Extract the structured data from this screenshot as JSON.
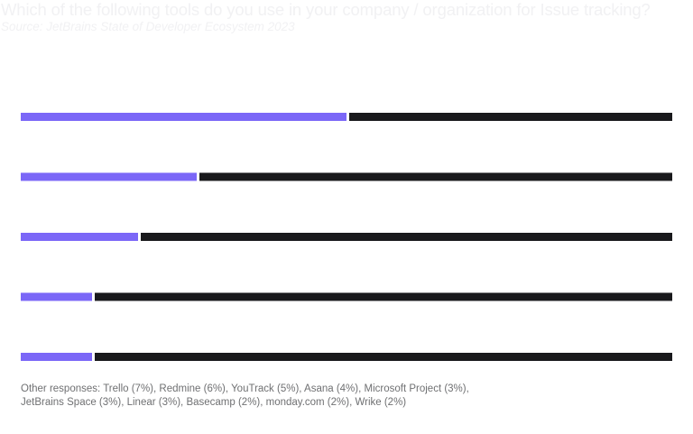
{
  "title": "Which of the following tools do you use in your company / organization for Issue tracking?",
  "source": "Source: JetBrains State of Developer Ecosystem 2023",
  "colors": {
    "bar": "#7b67f7",
    "track": "#19191c",
    "title_text": "#f1f1f3",
    "footnote_text": "#6f7072"
  },
  "chart_data": {
    "type": "bar",
    "orientation": "horizontal",
    "categories": [
      "",
      "",
      "",
      "",
      ""
    ],
    "values": [
      50,
      27,
      18,
      11,
      11
    ],
    "xlim": [
      0,
      100
    ],
    "grid": false,
    "legend": "none"
  },
  "footnote": {
    "line1": "Other responses: Trello (7%), Redmine (6%), YouTrack (5%), Asana (4%), Microsoft Project (3%),",
    "line2": "JetBrains Space (3%), Linear (3%), Basecamp (2%), monday.com (2%), Wrike (2%)"
  }
}
